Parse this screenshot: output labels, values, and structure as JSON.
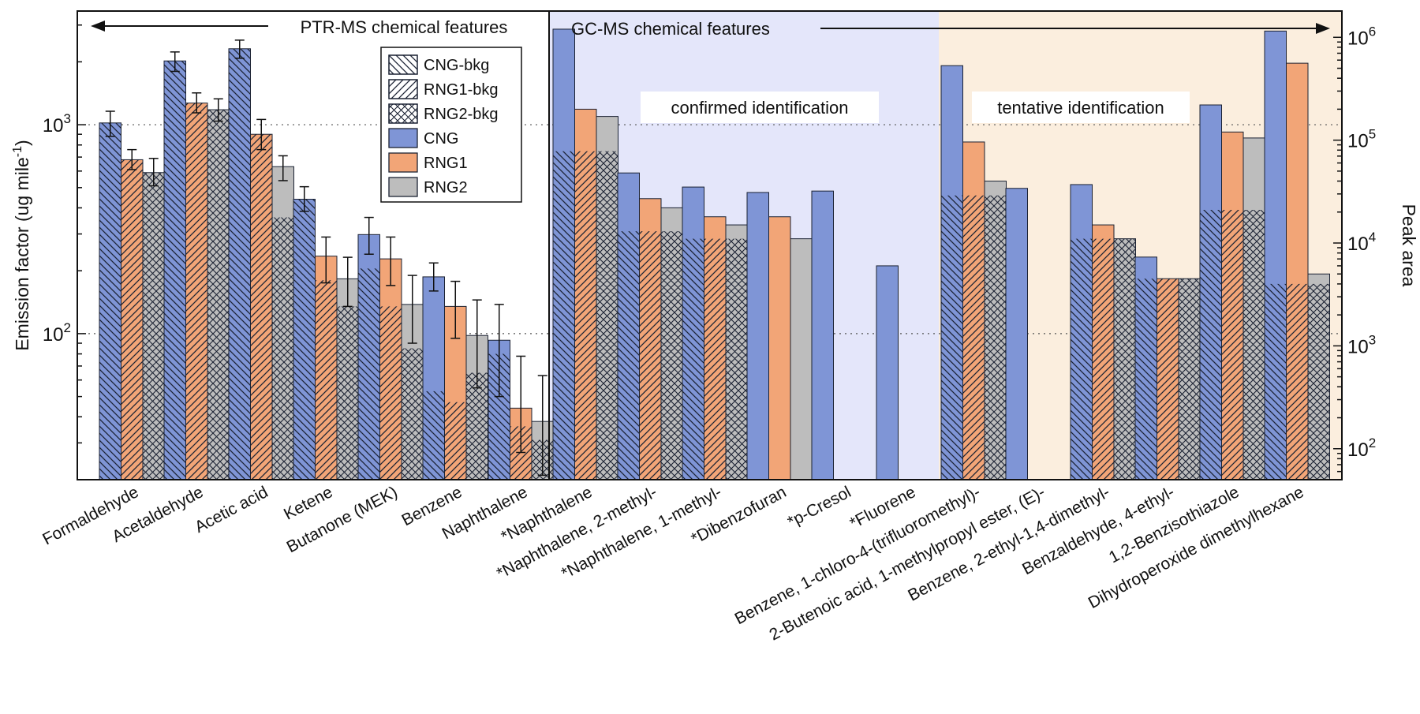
{
  "chart_data": {
    "type": "bar",
    "title": "",
    "ylabel_left": "Emission factor (ug mile",
    "ylabel_left_sup": "-1",
    "ylabel_left_close": ")",
    "ylabel_right": "Peak area",
    "left_axis": {
      "scale": "log",
      "range": [
        20,
        3500
      ],
      "ticks": [
        {
          "base": "10",
          "exp": "2",
          "value": 100
        },
        {
          "base": "10",
          "exp": "3",
          "value": 1000
        }
      ]
    },
    "right_axis": {
      "scale": "log",
      "range": [
        50,
        1800000
      ],
      "ticks": [
        {
          "base": "10",
          "exp": "2",
          "value": 100
        },
        {
          "base": "10",
          "exp": "3",
          "value": 1000
        },
        {
          "base": "10",
          "exp": "4",
          "value": 10000
        },
        {
          "base": "10",
          "exp": "5",
          "value": 100000
        },
        {
          "base": "10",
          "exp": "6",
          "value": 1000000
        }
      ]
    },
    "regions": {
      "ptr": {
        "label": "PTR-MS chemical features"
      },
      "gc": {
        "label": "GC-MS chemical features"
      },
      "confirmed": {
        "label": "confirmed identification",
        "color": "#e4e6fa"
      },
      "tentative": {
        "label": "tentative identification",
        "color": "#fbeede"
      }
    },
    "legend": [
      {
        "label": "CNG-bkg",
        "pattern": "hatch-down"
      },
      {
        "label": "RNG1-bkg",
        "pattern": "hatch-up"
      },
      {
        "label": "RNG2-bkg",
        "pattern": "crosshatch"
      },
      {
        "label": "CNG",
        "color": "#7f95d6"
      },
      {
        "label": "RNG1",
        "color": "#f2a577"
      },
      {
        "label": "RNG2",
        "color": "#bdbdbd"
      }
    ],
    "series_names": [
      "CNG",
      "RNG1",
      "RNG2"
    ],
    "series_colors": [
      "#7f95d6",
      "#f2a577",
      "#bdbdbd"
    ],
    "ptr_ms": [
      {
        "label": "Formaldehyde",
        "values": [
          1020,
          680,
          590
        ],
        "bkg": [
          1020,
          680,
          590
        ],
        "err_low": [
          880,
          610,
          510
        ],
        "err_high": [
          1160,
          760,
          690
        ]
      },
      {
        "label": "Acetaldehyde",
        "values": [
          2020,
          1270,
          1180
        ],
        "bkg": [
          2020,
          1270,
          1180
        ],
        "err_low": [
          1800,
          1140,
          1040
        ],
        "err_high": [
          2230,
          1420,
          1330
        ]
      },
      {
        "label": "Acetic acid",
        "values": [
          2310,
          900,
          630
        ],
        "bkg": [
          2310,
          900,
          360
        ],
        "err_low": [
          2080,
          760,
          540
        ],
        "err_high": [
          2540,
          1060,
          710
        ]
      },
      {
        "label": "Ketene",
        "values": [
          440,
          235,
          183
        ],
        "bkg": [
          440,
          180,
          135
        ],
        "err_low": [
          385,
          175,
          135
        ],
        "err_high": [
          505,
          290,
          232
        ]
      },
      {
        "label": "Butanone (MEK)",
        "values": [
          298,
          228,
          138
        ],
        "bkg": [
          205,
          135,
          85
        ],
        "err_low": [
          240,
          170,
          90
        ],
        "err_high": [
          360,
          290,
          190
        ]
      },
      {
        "label": "Benzene",
        "values": [
          187,
          135,
          98
        ],
        "bkg": [
          53,
          47,
          65
        ],
        "err_low": [
          160,
          95,
          55
        ],
        "err_high": [
          218,
          178,
          145
        ]
      },
      {
        "label": "Naphthalene",
        "values": [
          93,
          44,
          38
        ],
        "bkg": [
          80,
          36,
          31
        ],
        "err_low": [
          50,
          27,
          21
        ],
        "err_high": [
          138,
          78,
          63
        ]
      }
    ],
    "gc_ms": [
      {
        "label": "*Naphthalene",
        "values": [
          1200000,
          200000,
          170000
        ],
        "bkg": [
          78000,
          78000,
          78000
        ]
      },
      {
        "label": "*Naphthalene, 2-methyl-",
        "values": [
          48000,
          27000,
          22000
        ],
        "bkg": [
          13000,
          13000,
          13000
        ]
      },
      {
        "label": "*Naphthalene, 1-methyl-",
        "values": [
          35000,
          18000,
          15000
        ],
        "bkg": [
          11000,
          11000,
          11000
        ]
      },
      {
        "label": "*Dibenzofuran",
        "values": [
          31000,
          18000,
          11000
        ],
        "bkg": [
          0,
          0,
          0
        ]
      },
      {
        "label": "*p-Cresol",
        "values": [
          32000,
          null,
          null
        ],
        "bkg": [
          0,
          0,
          0
        ]
      },
      {
        "label": "*Fluorene",
        "values": [
          6000,
          null,
          null
        ],
        "bkg": [
          0,
          0,
          0
        ]
      },
      {
        "label": "Benzene, 1-chloro-4-(trifluoromethyl)-",
        "values": [
          530000,
          96000,
          40000
        ],
        "bkg": [
          29000,
          29000,
          29000
        ]
      },
      {
        "label": "2-Butenoic acid, 1-methylpropyl ester, (E)-",
        "values": [
          34000,
          null,
          null
        ],
        "bkg": [
          0,
          0,
          0
        ]
      },
      {
        "label": "Benzene, 2-ethyl-1,4-dimethyl-",
        "values": [
          37000,
          15000,
          11000
        ],
        "bkg": [
          11000,
          11000,
          11000
        ]
      },
      {
        "label": "Benzaldehyde, 4-ethyl-",
        "values": [
          7300,
          4500,
          4500
        ],
        "bkg": [
          4500,
          4500,
          4500
        ]
      },
      {
        "label": "1,2-Benzisothiazole",
        "values": [
          220000,
          120000,
          105000
        ],
        "bkg": [
          21000,
          21000,
          21000
        ]
      },
      {
        "label": "Dihydroperoxide dimethylhexane",
        "values": [
          1150000,
          560000,
          5000
        ],
        "bkg": [
          4000,
          4000,
          4000
        ]
      }
    ]
  }
}
